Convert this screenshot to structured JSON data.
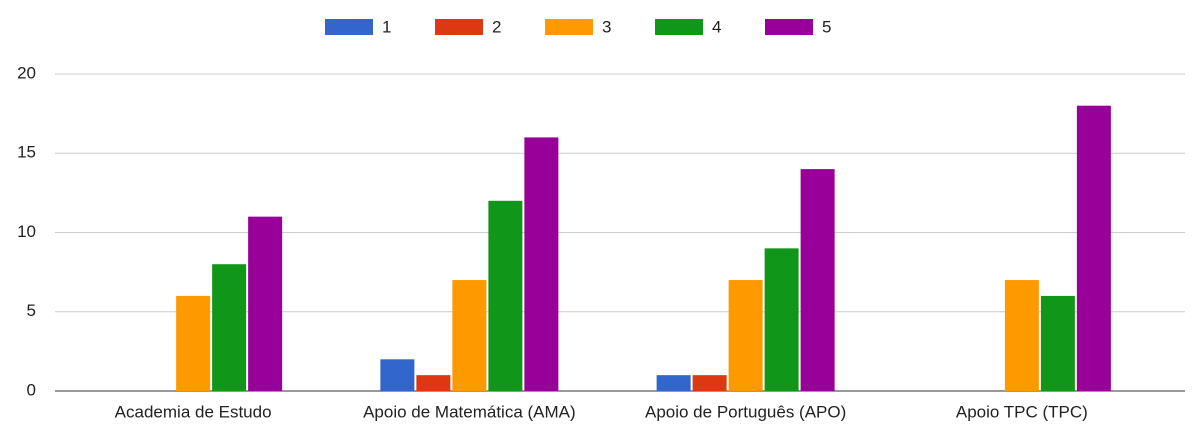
{
  "chart_data": {
    "type": "bar",
    "categories": [
      "Academia de Estudo",
      "Apoio de Matemática (AMA)",
      "Apoio de Português (APO)",
      "Apoio TPC (TPC)"
    ],
    "series": [
      {
        "name": "1",
        "color": "#3366cc",
        "values": [
          0,
          2,
          1,
          0
        ]
      },
      {
        "name": "2",
        "color": "#dc3912",
        "values": [
          0,
          1,
          1,
          0
        ]
      },
      {
        "name": "3",
        "color": "#ff9900",
        "values": [
          6,
          7,
          7,
          7
        ]
      },
      {
        "name": "4",
        "color": "#109618",
        "values": [
          8,
          12,
          9,
          6
        ]
      },
      {
        "name": "5",
        "color": "#990099",
        "values": [
          11,
          16,
          14,
          18
        ]
      }
    ],
    "ylim": [
      0,
      20
    ],
    "yticks": [
      0,
      5,
      10,
      15,
      20
    ],
    "grid": true,
    "legend": "top"
  }
}
